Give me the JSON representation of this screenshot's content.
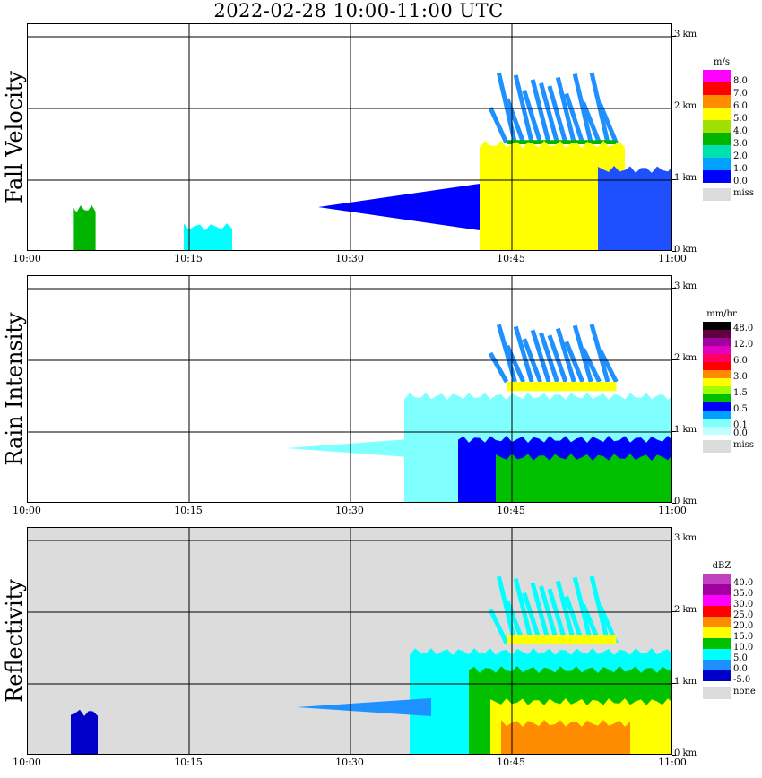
{
  "title": "2022-02-28  10:00-11:00 UTC",
  "x_ticks": [
    "10:00",
    "10:15",
    "10:30",
    "10:45",
    "11:00"
  ],
  "y_ticks": [
    "0 km",
    "1 km",
    "2 km",
    "3 km"
  ],
  "missing_color": "#dcdcdc",
  "chart_data": [
    {
      "type": "heatmap",
      "ylabel": "Fall Velocity",
      "unit": "m/s",
      "xlim": [
        "10:00",
        "11:00"
      ],
      "ylim_km": [
        0,
        3.3
      ],
      "grid": true,
      "legend": {
        "labels": [
          "8.0",
          "7.0",
          "6.0",
          "5.0",
          "4.0",
          "3.0",
          "2.0",
          "1.0",
          "0.0"
        ],
        "colors": [
          "#ff00ff",
          "#ff0000",
          "#ff8c00",
          "#ffff00",
          "#a0e000",
          "#00b400",
          "#00e0b0",
          "#00a0ff",
          "#0000ff"
        ],
        "missing_label": "miss"
      },
      "features": [
        {
          "t0": 44.5,
          "t1": 54.7,
          "h0": 1.52,
          "h1": 2.5,
          "color": "#1e90ff",
          "type": "streaks"
        },
        {
          "t0": 44.5,
          "t1": 54.7,
          "h0": 1.5,
          "h1": 1.56,
          "color": "#00b400",
          "type": "band"
        },
        {
          "t0": 42.0,
          "t1": 55.5,
          "h0": 0.0,
          "h1": 1.5,
          "color": "#ffff00",
          "type": "column"
        },
        {
          "t0": 27.0,
          "t1": 42.0,
          "h0": 0.3,
          "h1": 0.95,
          "color": "#0000ff",
          "type": "wedge"
        },
        {
          "t0": 53.0,
          "t1": 60.0,
          "h0": 0.0,
          "h1": 1.15,
          "color": "#1e50ff",
          "type": "column"
        },
        {
          "t0": 14.5,
          "t1": 19.0,
          "h0": 0.0,
          "h1": 0.35,
          "color": "#00ffff",
          "type": "patch"
        },
        {
          "t0": 4.2,
          "t1": 6.3,
          "h0": 0.0,
          "h1": 0.6,
          "color": "#00b400",
          "type": "patch"
        }
      ]
    },
    {
      "type": "heatmap",
      "ylabel": "Rain Intensity",
      "unit": "mm/hr",
      "xlim": [
        "10:00",
        "11:00"
      ],
      "ylim_km": [
        0,
        3.3
      ],
      "grid": true,
      "legend": {
        "labels": [
          "48.0",
          "",
          "12.0",
          "",
          "6.0",
          "",
          "3.0",
          "",
          "1.5",
          "",
          "0.5",
          "",
          "0.1",
          "0.0"
        ],
        "colors": [
          "#000000",
          "#600040",
          "#a000a0",
          "#e000c0",
          "#ff0060",
          "#ff0000",
          "#ff8c00",
          "#ffff00",
          "#a0ff00",
          "#00c000",
          "#0000ff",
          "#00a0ff",
          "#80ffff",
          "#c0ffff"
        ],
        "missing_label": "miss"
      },
      "features": [
        {
          "t0": 44.5,
          "t1": 54.7,
          "h0": 1.7,
          "h1": 2.5,
          "color": "#1e90ff",
          "type": "streaks"
        },
        {
          "t0": 44.5,
          "t1": 54.7,
          "h0": 1.57,
          "h1": 1.7,
          "color": "#ffff00",
          "type": "band"
        },
        {
          "t0": 35.0,
          "t1": 60.0,
          "h0": 0.0,
          "h1": 1.5,
          "color": "#80ffff",
          "type": "column"
        },
        {
          "t0": 40.0,
          "t1": 60.0,
          "h0": 0.0,
          "h1": 0.9,
          "color": "#0000ff",
          "type": "column"
        },
        {
          "t0": 43.5,
          "t1": 60.0,
          "h0": 0.0,
          "h1": 0.65,
          "color": "#00c000",
          "type": "column"
        },
        {
          "t0": 24.0,
          "t1": 40.0,
          "h0": 0.6,
          "h1": 0.95,
          "color": "#80ffff",
          "type": "wedge"
        }
      ]
    },
    {
      "type": "heatmap",
      "ylabel": "Reflectivity",
      "unit": "dBZ",
      "xlim": [
        "10:00",
        "11:00"
      ],
      "ylim_km": [
        0,
        3.3
      ],
      "grid": true,
      "legend": {
        "labels": [
          "40.0",
          "35.0",
          "30.0",
          "25.0",
          "20.0",
          "15.0",
          "10.0",
          "5.0",
          "0.0",
          "-5.0"
        ],
        "colors": [
          "#c040c0",
          "#a000a0",
          "#ff00ff",
          "#ff0000",
          "#ff8c00",
          "#ffff00",
          "#00c000",
          "#00ffff",
          "#1e90ff",
          "#0000c8"
        ],
        "missing_label": "none"
      },
      "features": [
        {
          "t0": 44.5,
          "t1": 54.7,
          "h0": 1.57,
          "h1": 2.5,
          "color": "#00ffff",
          "type": "streaks"
        },
        {
          "t0": 44.5,
          "t1": 54.7,
          "h0": 1.55,
          "h1": 1.68,
          "color": "#ffff00",
          "type": "band"
        },
        {
          "t0": 35.5,
          "t1": 60.0,
          "h0": 0.0,
          "h1": 1.45,
          "color": "#00ffff",
          "type": "column"
        },
        {
          "t0": 41.0,
          "t1": 60.0,
          "h0": 0.0,
          "h1": 1.2,
          "color": "#00c000",
          "type": "column"
        },
        {
          "t0": 43.0,
          "t1": 60.0,
          "h0": 0.0,
          "h1": 0.75,
          "color": "#ffff00",
          "type": "column"
        },
        {
          "t0": 44.0,
          "t1": 56.0,
          "h0": 0.0,
          "h1": 0.45,
          "color": "#ff8c00",
          "type": "column"
        },
        {
          "t0": 25.0,
          "t1": 37.5,
          "h0": 0.55,
          "h1": 0.8,
          "color": "#1e90ff",
          "type": "wedge"
        },
        {
          "t0": 4.0,
          "t1": 6.5,
          "h0": 0.0,
          "h1": 0.6,
          "color": "#0000c8",
          "type": "patch"
        }
      ]
    }
  ]
}
